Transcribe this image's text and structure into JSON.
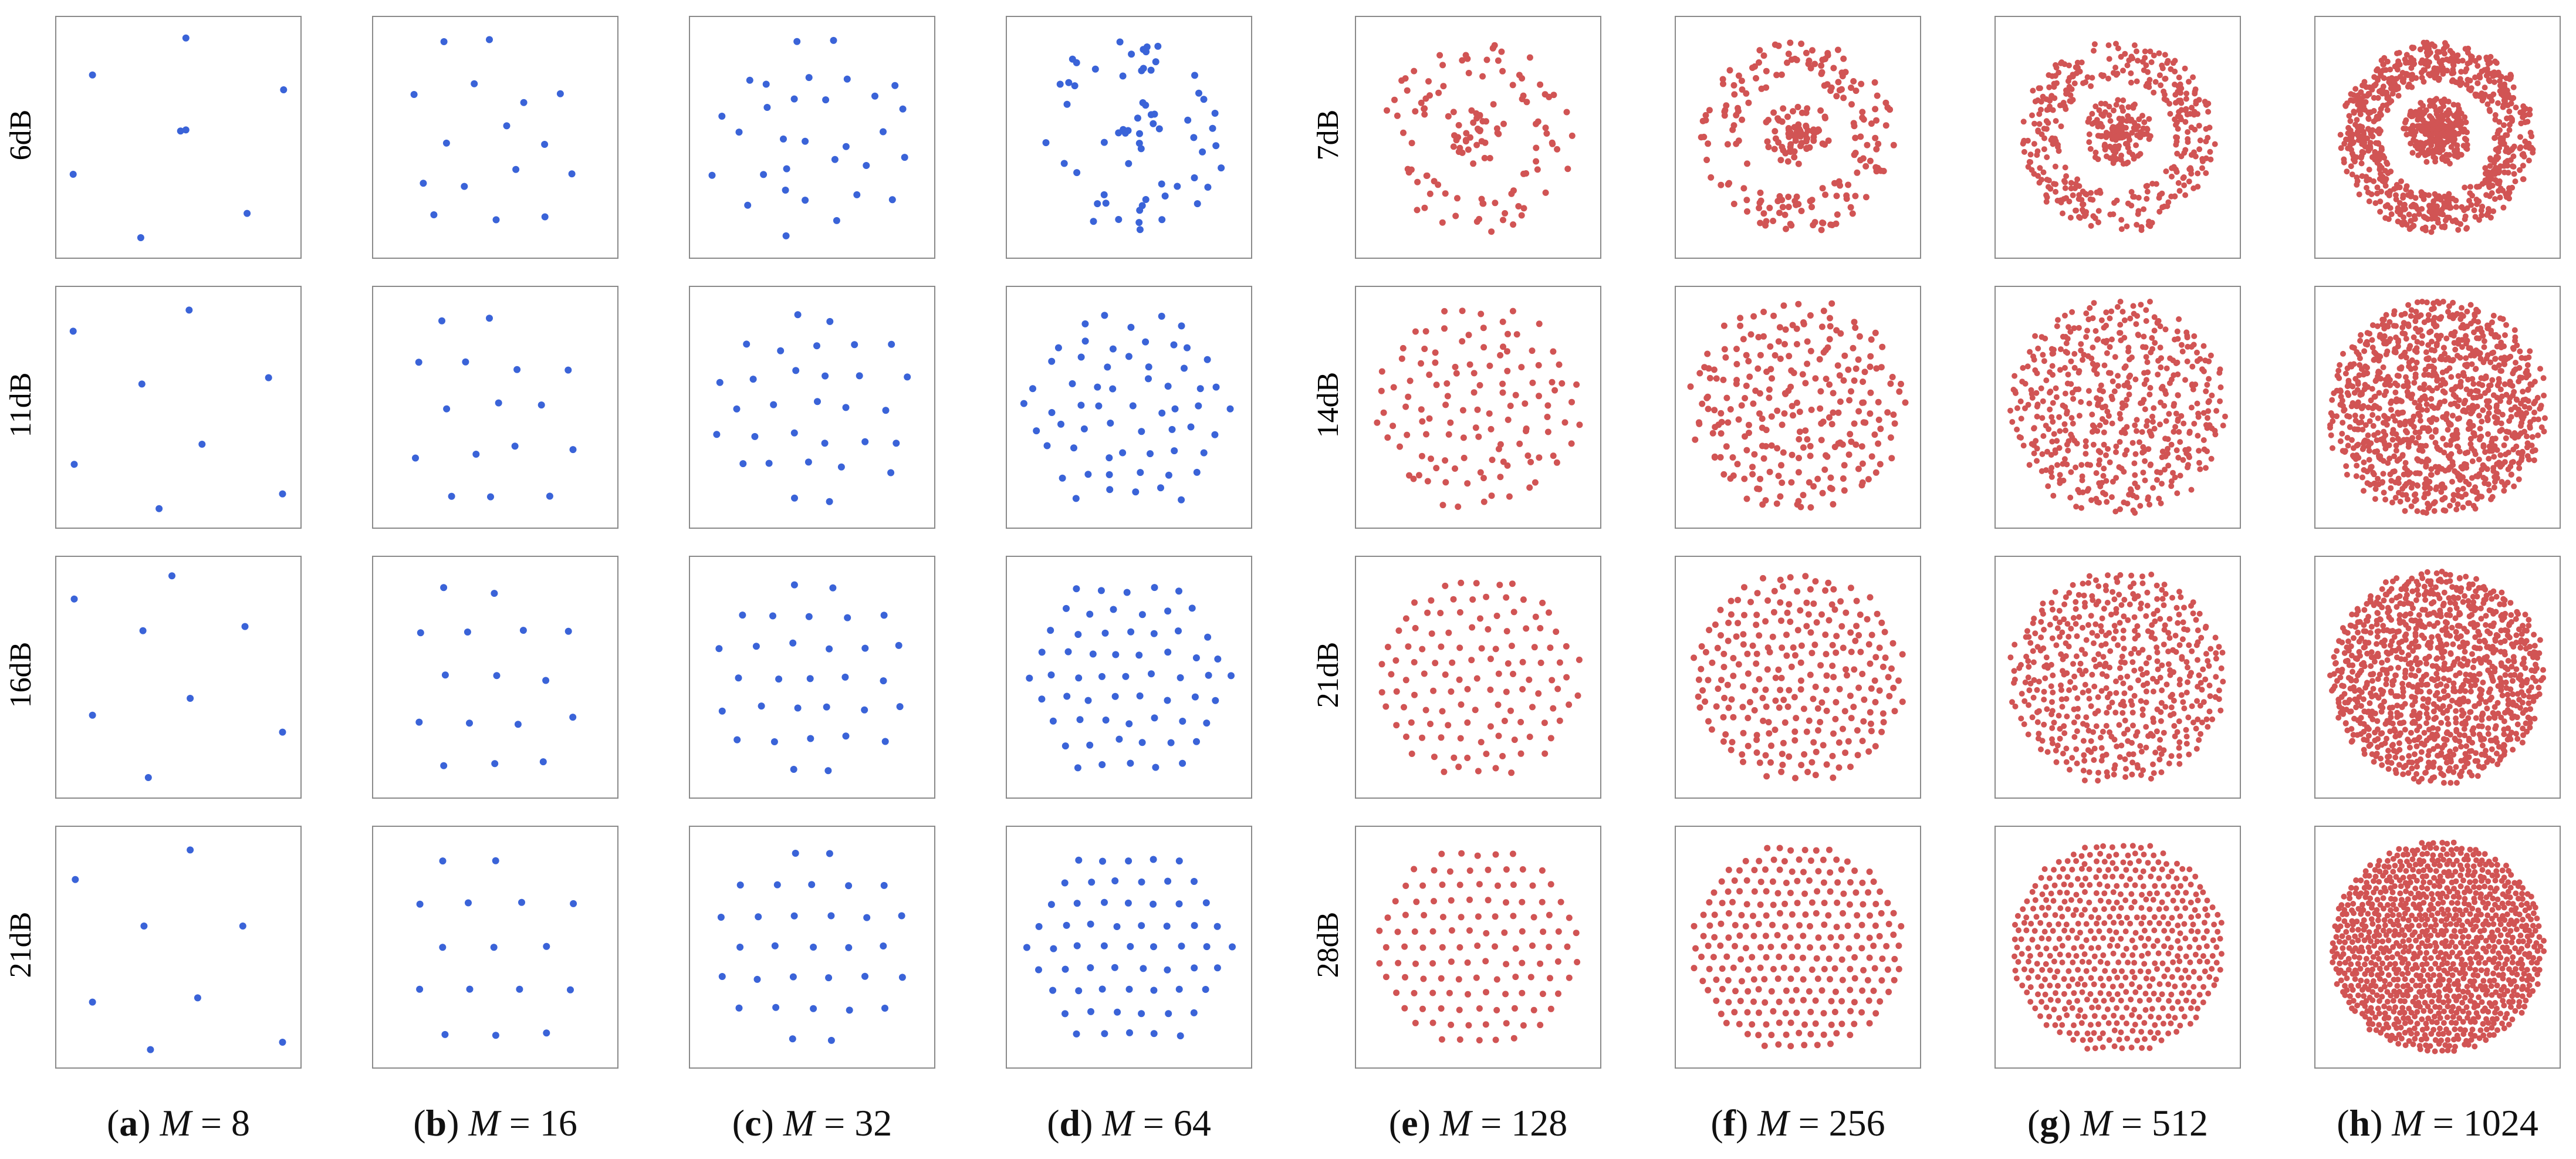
{
  "figure": {
    "colors": {
      "qam_points": "#3a63d8",
      "large_points": "#d15454",
      "frame": "#8a8a8a",
      "text": "#111111"
    },
    "left_group": {
      "row_labels": [
        "6dB",
        "11dB",
        "16dB",
        "21dB"
      ],
      "point_color": "#3a63d8"
    },
    "right_group": {
      "row_labels": [
        "7dB",
        "14dB",
        "21dB",
        "28dB"
      ],
      "point_color": "#d15454"
    },
    "captions": [
      {
        "letter": "a",
        "text": "M = 8"
      },
      {
        "letter": "b",
        "text": "M = 16"
      },
      {
        "letter": "c",
        "text": "M = 32"
      },
      {
        "letter": "d",
        "text": "M = 64"
      },
      {
        "letter": "e",
        "text": "M = 128"
      },
      {
        "letter": "f",
        "text": "M = 256"
      },
      {
        "letter": "g",
        "text": "M = 512"
      },
      {
        "letter": "h",
        "text": "M = 1024"
      }
    ]
  },
  "chart_data": {
    "type": "scatter",
    "description_grid": "8 columns x 4 rows of constellation scatter plots",
    "columns": [
      {
        "label": "(a) M = 8",
        "M": 8
      },
      {
        "label": "(b) M = 16",
        "M": 16
      },
      {
        "label": "(c) M = 32",
        "M": 32
      },
      {
        "label": "(d) M = 64",
        "M": 64
      },
      {
        "label": "(e) M = 128",
        "M": 128
      },
      {
        "label": "(f) M = 256",
        "M": 256
      },
      {
        "label": "(g) M = 512",
        "M": 512
      },
      {
        "label": "(h) M = 1024",
        "M": 1024
      }
    ],
    "rows_left": [
      "6dB",
      "11dB",
      "16dB",
      "21dB"
    ],
    "rows_right": [
      "7dB",
      "14dB",
      "21dB",
      "28dB"
    ],
    "axes": {
      "xlim": [
        -1,
        1
      ],
      "ylim": [
        -1,
        1
      ],
      "ticks": "none",
      "grid": false
    },
    "panels": [
      {
        "col": 0,
        "row": 0,
        "points": [
          [
            0.07,
            0.94
          ],
          [
            -0.8,
            0.59
          ],
          [
            0.98,
            0.45
          ],
          [
            0.02,
            0.06
          ],
          [
            0.07,
            0.07
          ],
          [
            -0.98,
            -0.35
          ],
          [
            0.64,
            -0.72
          ],
          [
            -0.35,
            -0.95
          ]
        ]
      },
      {
        "col": 0,
        "row": 1,
        "points": [
          [
            0.1,
            0.92
          ],
          [
            -0.98,
            0.72
          ],
          [
            0.84,
            0.28
          ],
          [
            -0.34,
            0.22
          ],
          [
            0.22,
            -0.35
          ],
          [
            -0.97,
            -0.54
          ],
          [
            0.97,
            -0.82
          ],
          [
            -0.18,
            -0.96
          ]
        ]
      },
      {
        "col": 0,
        "row": 2,
        "points": [
          [
            -0.06,
            0.96
          ],
          [
            -0.97,
            0.74
          ],
          [
            0.62,
            0.48
          ],
          [
            -0.33,
            0.44
          ],
          [
            -0.8,
            -0.36
          ],
          [
            0.11,
            -0.2
          ],
          [
            0.97,
            -0.52
          ],
          [
            -0.28,
            -0.95
          ]
        ]
      },
      {
        "col": 0,
        "row": 3,
        "points": [
          [
            0.11,
            0.92
          ],
          [
            -0.96,
            0.64
          ],
          [
            0.6,
            0.2
          ],
          [
            -0.32,
            0.2
          ],
          [
            -0.8,
            -0.52
          ],
          [
            0.18,
            -0.48
          ],
          [
            0.97,
            -0.9
          ],
          [
            -0.26,
            -0.97
          ]
        ]
      }
    ]
  }
}
